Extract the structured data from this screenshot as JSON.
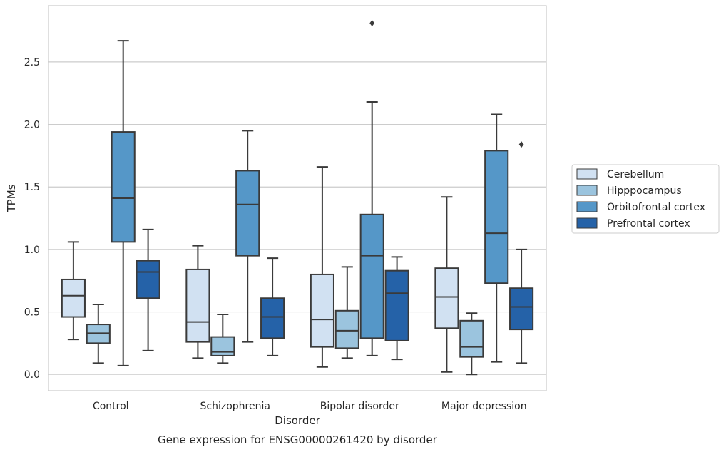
{
  "chart_data": {
    "type": "box",
    "title": "",
    "caption": "Gene expression for ENSG00000261420 by disorder",
    "xlabel": "Disorder",
    "ylabel": "TPMs",
    "ylim": [
      -0.13,
      2.95
    ],
    "yticks": [
      "0.0",
      "0.5",
      "1.0",
      "1.5",
      "2.0",
      "2.5"
    ],
    "grid": "horizontal",
    "legend_position": "right",
    "categories": [
      "Control",
      "Schizophrenia",
      "Bipolar disorder",
      "Major depression"
    ],
    "series": [
      {
        "name": "Cerebellum",
        "color": "#d1e1f2",
        "boxes": [
          {
            "whisker_low": 0.28,
            "q1": 0.46,
            "median": 0.63,
            "q3": 0.76,
            "whisker_high": 1.06,
            "outliers": []
          },
          {
            "whisker_low": 0.13,
            "q1": 0.26,
            "median": 0.42,
            "q3": 0.84,
            "whisker_high": 1.03,
            "outliers": []
          },
          {
            "whisker_low": 0.06,
            "q1": 0.22,
            "median": 0.44,
            "q3": 0.8,
            "whisker_high": 1.66,
            "outliers": []
          },
          {
            "whisker_low": 0.02,
            "q1": 0.37,
            "median": 0.62,
            "q3": 0.85,
            "whisker_high": 1.42,
            "outliers": []
          }
        ]
      },
      {
        "name": "Hipppocampus",
        "color": "#9bc4de",
        "boxes": [
          {
            "whisker_low": 0.09,
            "q1": 0.25,
            "median": 0.33,
            "q3": 0.4,
            "whisker_high": 0.56,
            "outliers": []
          },
          {
            "whisker_low": 0.09,
            "q1": 0.15,
            "median": 0.18,
            "q3": 0.3,
            "whisker_high": 0.48,
            "outliers": []
          },
          {
            "whisker_low": 0.13,
            "q1": 0.21,
            "median": 0.35,
            "q3": 0.51,
            "whisker_high": 0.86,
            "outliers": []
          },
          {
            "whisker_low": 0.0,
            "q1": 0.14,
            "median": 0.22,
            "q3": 0.43,
            "whisker_high": 0.49,
            "outliers": []
          }
        ]
      },
      {
        "name": "Orbitofrontal cortex",
        "color": "#5597c8",
        "boxes": [
          {
            "whisker_low": 0.07,
            "q1": 1.06,
            "median": 1.41,
            "q3": 1.94,
            "whisker_high": 2.67,
            "outliers": []
          },
          {
            "whisker_low": 0.26,
            "q1": 0.95,
            "median": 1.36,
            "q3": 1.63,
            "whisker_high": 1.95,
            "outliers": []
          },
          {
            "whisker_low": 0.15,
            "q1": 0.29,
            "median": 0.95,
            "q3": 1.28,
            "whisker_high": 2.18,
            "outliers": [
              2.81
            ]
          },
          {
            "whisker_low": 0.1,
            "q1": 0.73,
            "median": 1.13,
            "q3": 1.79,
            "whisker_high": 2.08,
            "outliers": []
          }
        ]
      },
      {
        "name": "Prefrontal cortex",
        "color": "#2562a8",
        "boxes": [
          {
            "whisker_low": 0.19,
            "q1": 0.61,
            "median": 0.82,
            "q3": 0.91,
            "whisker_high": 1.16,
            "outliers": []
          },
          {
            "whisker_low": 0.15,
            "q1": 0.29,
            "median": 0.46,
            "q3": 0.61,
            "whisker_high": 0.93,
            "outliers": []
          },
          {
            "whisker_low": 0.12,
            "q1": 0.27,
            "median": 0.65,
            "q3": 0.83,
            "whisker_high": 0.94,
            "outliers": []
          },
          {
            "whisker_low": 0.09,
            "q1": 0.36,
            "median": 0.54,
            "q3": 0.69,
            "whisker_high": 1.0,
            "outliers": [
              1.84
            ]
          }
        ]
      }
    ]
  }
}
